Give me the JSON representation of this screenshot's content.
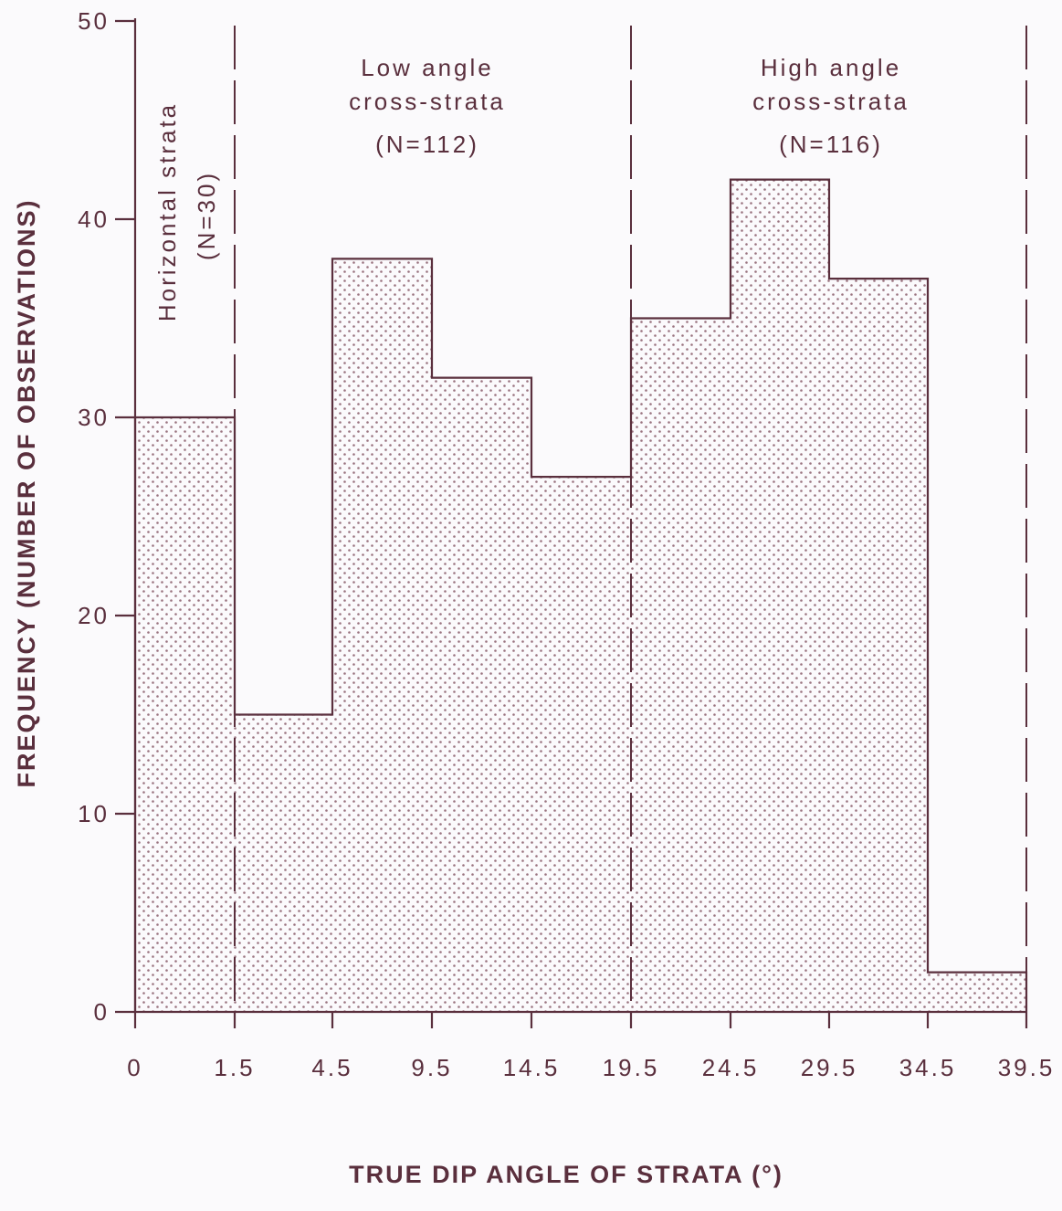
{
  "chart_data": {
    "type": "bar",
    "title": "",
    "xlabel": "TRUE DIP ANGLE OF STRATA (°)",
    "ylabel": "FREQUENCY (NUMBER OF OBSERVATIONS)",
    "ylim": [
      0,
      50
    ],
    "yticks": [
      "0",
      "10",
      "20",
      "30",
      "40",
      "50"
    ],
    "xtick_labels": [
      "0",
      "1.5",
      "4.5",
      "9.5",
      "14.5",
      "19.5",
      "24.5",
      "29.5",
      "34.5",
      "39.5"
    ],
    "bins": [
      "0–1.5",
      "1.5–4.5",
      "4.5–9.5",
      "9.5–14.5",
      "14.5–19.5",
      "19.5–24.5",
      "24.5–29.5",
      "29.5–34.5",
      "34.5–39.5"
    ],
    "values": [
      30,
      15,
      38,
      32,
      27,
      35,
      42,
      37,
      2
    ],
    "grid": false,
    "zones": [
      {
        "lines": [
          "Horizontal strata",
          "(N=30)"
        ],
        "orientation": "vertical"
      },
      {
        "lines": [
          "Low angle",
          "cross-strata",
          "(N=112)"
        ],
        "orientation": "horizontal"
      },
      {
        "lines": [
          "High angle",
          "cross-strata",
          "(N=116)"
        ],
        "orientation": "horizontal"
      }
    ]
  },
  "colors": {
    "ink": "#5a2f3d",
    "background": "#fbfafc",
    "dot_fill": "#9a7480"
  }
}
